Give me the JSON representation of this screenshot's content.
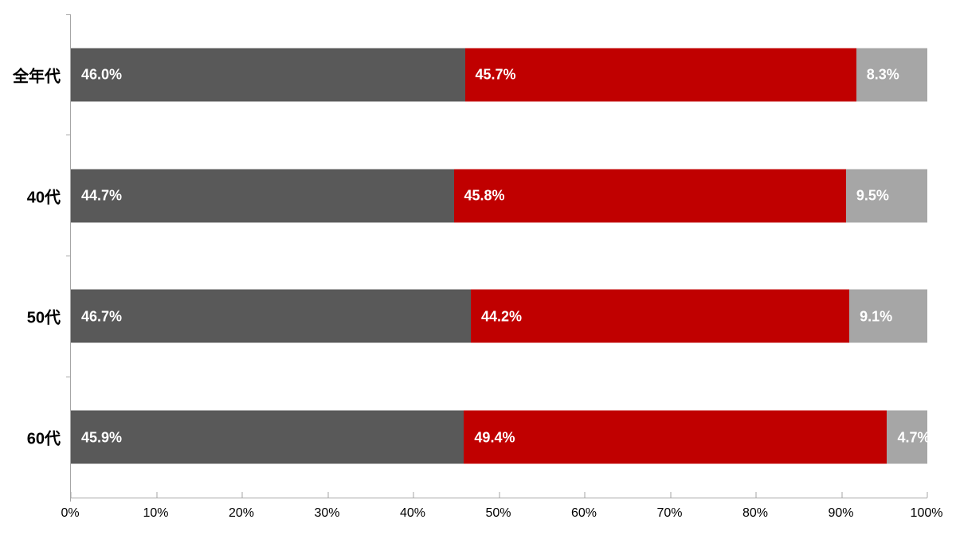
{
  "chart_data": {
    "type": "bar",
    "orientation": "horizontal",
    "stacked": true,
    "title": "",
    "categories": [
      "全年代",
      "40代",
      "50代",
      "60代"
    ],
    "series": [
      {
        "name": "dark-gray-segment",
        "color": "#595959",
        "text_color": "#FFFFFF",
        "values": [
          46.0,
          44.7,
          46.7,
          45.9
        ],
        "labels": [
          "46.0%",
          "44.7%",
          "46.7%",
          "45.9%"
        ]
      },
      {
        "name": "red-segment",
        "color": "#C00000",
        "text_color": "#FFFFFF",
        "values": [
          45.7,
          45.8,
          44.2,
          49.4
        ],
        "labels": [
          "45.7%",
          "45.8%",
          "44.2%",
          "49.4%"
        ]
      },
      {
        "name": "light-gray-segment",
        "color": "#A6A6A6",
        "text_color": "#FFFFFF",
        "values": [
          8.3,
          9.5,
          9.1,
          4.7
        ],
        "labels": [
          "8.3%",
          "9.5%",
          "9.1%",
          "4.7%"
        ]
      }
    ],
    "x_axis": {
      "min": 0,
      "max": 100,
      "tick_step": 10,
      "tick_labels": [
        "0%",
        "10%",
        "20%",
        "30%",
        "40%",
        "50%",
        "60%",
        "70%",
        "80%",
        "90%",
        "100%"
      ]
    },
    "axis_color": "#A6A6A6",
    "background": "#FFFFFF",
    "grid": false,
    "legend": false
  }
}
